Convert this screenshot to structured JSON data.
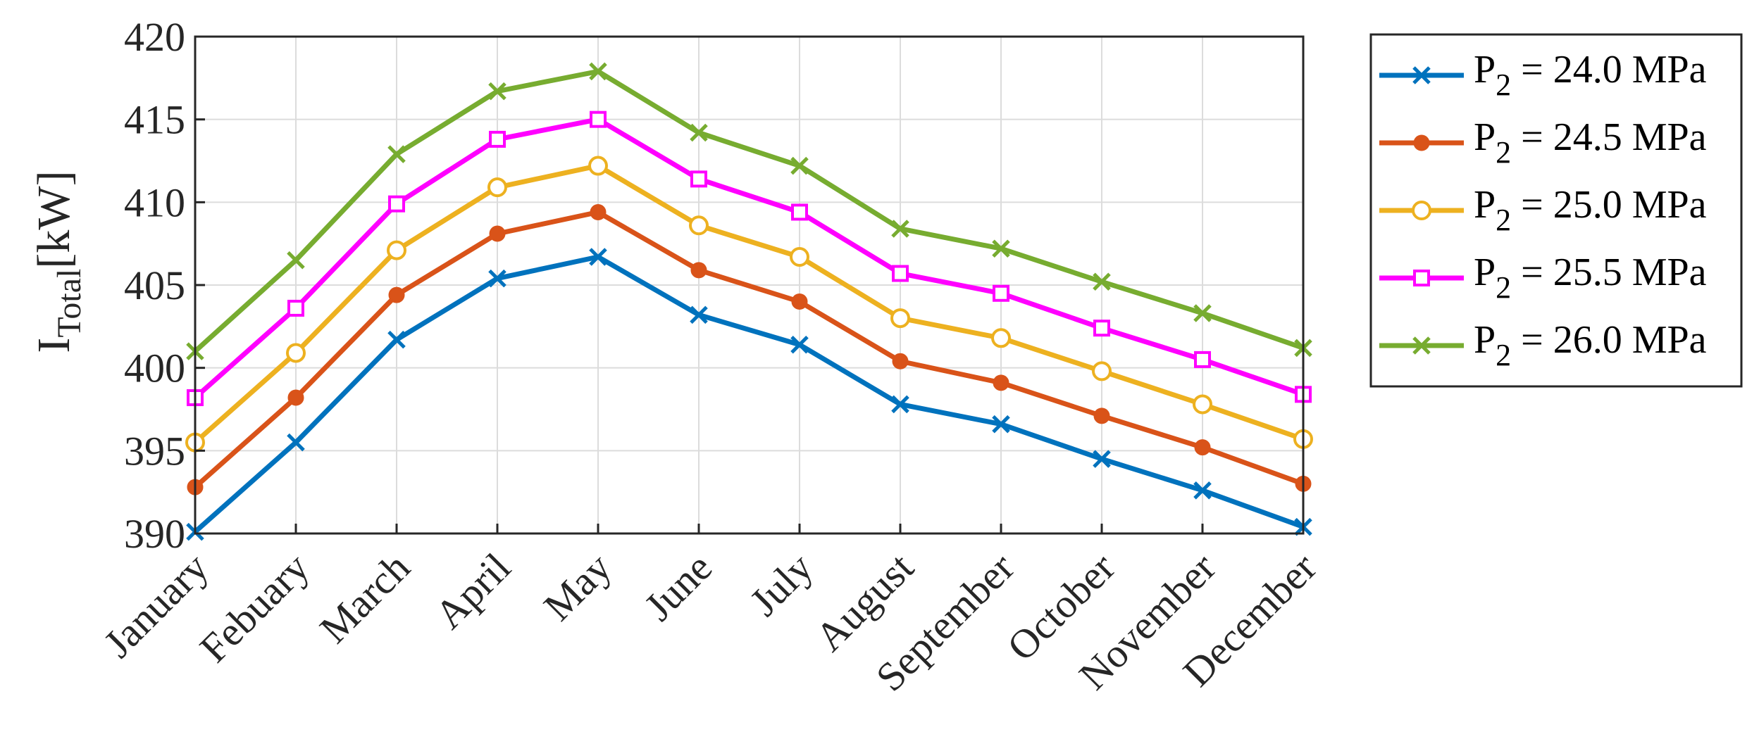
{
  "chart_data": {
    "type": "line",
    "title": "",
    "xlabel": "",
    "ylabel": {
      "main": "I",
      "sub": "Total",
      "unit": "[kW]"
    },
    "ylim": [
      390,
      420
    ],
    "yticks": [
      390,
      395,
      400,
      405,
      410,
      415,
      420
    ],
    "grid": true,
    "legend_position": "outside-right",
    "categories": [
      "January",
      "Febuary",
      "March",
      "April",
      "May",
      "June",
      "July",
      "August",
      "September",
      "October",
      "November",
      "December"
    ],
    "series": [
      {
        "name": "P2 = 24.0 MPa",
        "label_main": "P",
        "label_sub": "2",
        "label_rest": " = 24.0 MPa",
        "color": "#0072BD",
        "marker": "x",
        "values": [
          390.1,
          395.5,
          401.7,
          405.4,
          406.7,
          403.2,
          401.4,
          397.8,
          396.6,
          394.5,
          392.6,
          390.4
        ]
      },
      {
        "name": "P2 = 24.5 MPa",
        "label_main": "P",
        "label_sub": "2",
        "label_rest": " = 24.5 MPa",
        "color": "#D95319",
        "marker": "filled-circle",
        "values": [
          392.8,
          398.2,
          404.4,
          408.1,
          409.4,
          405.9,
          404.0,
          400.4,
          399.1,
          397.1,
          395.2,
          393.0
        ]
      },
      {
        "name": "P2 = 25.0 MPa",
        "label_main": "P",
        "label_sub": "2",
        "label_rest": " = 25.0 MPa",
        "color": "#EDB120",
        "marker": "open-circle",
        "values": [
          395.5,
          400.9,
          407.1,
          410.9,
          412.2,
          408.6,
          406.7,
          403.0,
          401.8,
          399.8,
          397.8,
          395.7
        ]
      },
      {
        "name": "P2 = 25.5 MPa",
        "label_main": "P",
        "label_sub": "2",
        "label_rest": " = 25.5 MPa",
        "color": "#FF00FF",
        "marker": "open-square",
        "values": [
          398.2,
          403.6,
          409.9,
          413.8,
          415.0,
          411.4,
          409.4,
          405.7,
          404.5,
          402.4,
          400.5,
          398.4
        ]
      },
      {
        "name": "P2 = 26.0 MPa",
        "label_main": "P",
        "label_sub": "2",
        "label_rest": " = 26.0 MPa",
        "color": "#77AC30",
        "marker": "x",
        "values": [
          401.0,
          406.5,
          412.9,
          416.7,
          417.9,
          414.2,
          412.2,
          408.4,
          407.2,
          405.2,
          403.3,
          401.2
        ]
      }
    ]
  }
}
